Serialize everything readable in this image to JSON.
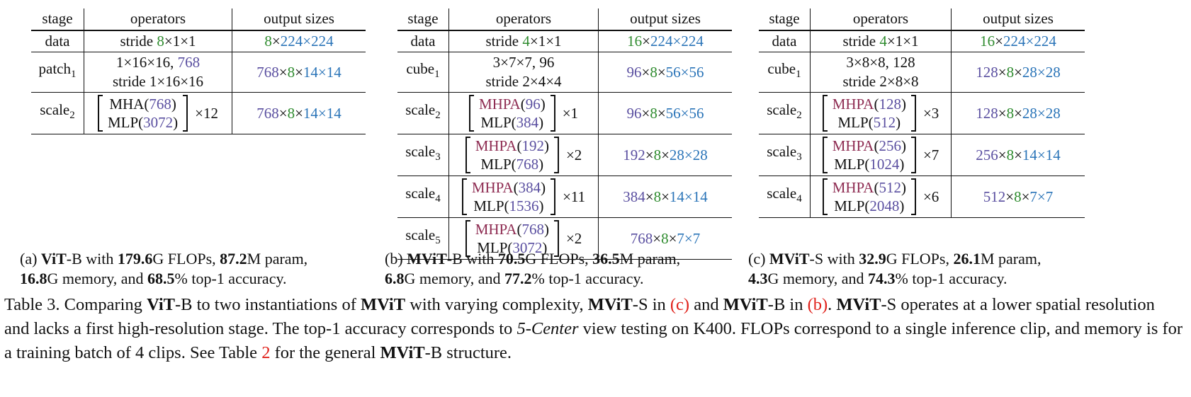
{
  "headers": {
    "stage": "stage",
    "operators": "operators",
    "output_sizes": "output sizes"
  },
  "panel_a": {
    "data_stage": "data",
    "data_op_pre": "stride ",
    "data_op_t": "8",
    "data_op_rest": "×1×1",
    "data_out_t": "8",
    "data_out_x": "×",
    "data_out_hw": "224×224",
    "patch_stage": "patch",
    "patch_sub": "1",
    "patch_op_line1_a": "1×16×16, ",
    "patch_op_line1_b": "768",
    "patch_op_line2": "stride 1×16×16",
    "patch_out_c": "768",
    "patch_out_x1": "×",
    "patch_out_t": "8",
    "patch_out_x2": "×",
    "patch_out_hw": "14×14",
    "scale_stage": "scale",
    "scale_sub": "2",
    "scale_op1": "MHA(",
    "scale_op1_v": "768",
    "scale_op1_c": ")",
    "scale_op2": "MLP(",
    "scale_op2_v": "3072",
    "scale_op2_c": ")",
    "scale_rep": "×12",
    "scale_out_c": "768",
    "scale_out_x1": "×",
    "scale_out_t": "8",
    "scale_out_x2": "×",
    "scale_out_hw": "14×14"
  },
  "panel_b": {
    "data_stage": "data",
    "data_op_pre": "stride ",
    "data_op_t": "4",
    "data_op_rest": "×1×1",
    "data_out_t": "16",
    "data_out_x": "×",
    "data_out_hw": "224×224",
    "cube_stage": "cube",
    "cube_sub": "1",
    "cube_op_line1_a": "3×7×7, ",
    "cube_op_line1_b": "96",
    "cube_op_line2": "stride 2×4×4",
    "cube_out_c": "96",
    "cube_out_t": "8",
    "cube_out_hw": "56×56",
    "rows": [
      {
        "stage": "scale",
        "sub": "2",
        "mhpa": "MHPA",
        "mhpa_v": "96",
        "mlp": "MLP(",
        "mlp_v": "384",
        "rep": "×1",
        "out_c": "96",
        "out_t": "8",
        "out_hw": "56×56"
      },
      {
        "stage": "scale",
        "sub": "3",
        "mhpa": "MHPA",
        "mhpa_v": "192",
        "mlp": "MLP(",
        "mlp_v": "768",
        "rep": "×2",
        "out_c": "192",
        "out_t": "8",
        "out_hw": "28×28"
      },
      {
        "stage": "scale",
        "sub": "4",
        "mhpa": "MHPA",
        "mhpa_v": "384",
        "mlp": "MLP(",
        "mlp_v": "1536",
        "rep": "×11",
        "out_c": "384",
        "out_t": "8",
        "out_hw": "14×14"
      },
      {
        "stage": "scale",
        "sub": "5",
        "mhpa": "MHPA",
        "mhpa_v": "768",
        "mlp": "MLP(",
        "mlp_v": "3072",
        "rep": "×2",
        "out_c": "768",
        "out_t": "8",
        "out_hw": "7×7"
      }
    ]
  },
  "panel_c": {
    "data_stage": "data",
    "data_op_pre": "stride ",
    "data_op_t": "4",
    "data_op_rest": "×1×1",
    "data_out_t": "16",
    "data_out_x": "×",
    "data_out_hw": "224×224",
    "cube_stage": "cube",
    "cube_sub": "1",
    "cube_op_line1_a": "3×8×8, ",
    "cube_op_line1_b": "128",
    "cube_op_line2": "stride 2×8×8",
    "cube_out_c": "128",
    "cube_out_t": "8",
    "cube_out_hw": "28×28",
    "rows": [
      {
        "stage": "scale",
        "sub": "2",
        "mhpa": "MHPA",
        "mhpa_v": "128",
        "mlp": "MLP(",
        "mlp_v": "512",
        "rep": "×3",
        "out_c": "128",
        "out_t": "8",
        "out_hw": "28×28"
      },
      {
        "stage": "scale",
        "sub": "3",
        "mhpa": "MHPA",
        "mhpa_v": "256",
        "mlp": "MLP(",
        "mlp_v": "1024",
        "rep": "×7",
        "out_c": "256",
        "out_t": "8",
        "out_hw": "14×14"
      },
      {
        "stage": "scale",
        "sub": "4",
        "mhpa": "MHPA",
        "mhpa_v": "512",
        "mlp": "MLP(",
        "mlp_v": "2048",
        "rep": "×6",
        "out_c": "512",
        "out_t": "8",
        "out_hw": "7×7"
      }
    ]
  },
  "captions": {
    "a": {
      "label": "(a) ",
      "model": "ViT",
      "variant": "-B with ",
      "flops": "179.6",
      "flops_u": "G FLOPs, ",
      "param": "87.2",
      "param_u": "M param,",
      "mem": "16.8",
      "mem_u": "G memory, and ",
      "acc": "68.5",
      "acc_u": "% top-1 accuracy."
    },
    "b": {
      "label": "(b) ",
      "model": "MViT",
      "variant": "-B with ",
      "flops": "70.5",
      "flops_u": "G FLOPs, ",
      "param": "36.5",
      "param_u": "M param,",
      "mem": "6.8",
      "mem_u": "G memory, and ",
      "acc": "77.2",
      "acc_u": "% top-1 accuracy."
    },
    "c": {
      "label": "(c) ",
      "model": "MViT",
      "variant": "-S with ",
      "flops": "32.9",
      "flops_u": "G FLOPs, ",
      "param": "26.1",
      "param_u": "M param,",
      "mem": "4.3",
      "mem_u": "G memory, and ",
      "acc": "74.3",
      "acc_u": "% top-1 accuracy."
    }
  },
  "table_caption": {
    "t1": "Table 3. Comparing ",
    "vitb": "ViT",
    "t2": "-B to two instantiations of ",
    "mvit1": "MViT",
    "t3": " with varying complexity, ",
    "mvit2": "MViT",
    "t4": "-S in ",
    "ref_c": "(c)",
    "t5": " and ",
    "mvit3": "MViT",
    "t6": "-B in ",
    "ref_b": "(b)",
    "t7": ". ",
    "mvit4": "MViT",
    "t8": "-S operates at a lower spatial resolution and lacks a first high-resolution stage. The top-1 accuracy corresponds to ",
    "view": "5-Center",
    "t9": " view testing on K400. FLOPs correspond to a single inference clip, and memory is for a training batch of 4 clips. See Table ",
    "ref_2": "2",
    "t10": " for the general ",
    "mvit5": "MViT",
    "t11": "-B structure."
  }
}
